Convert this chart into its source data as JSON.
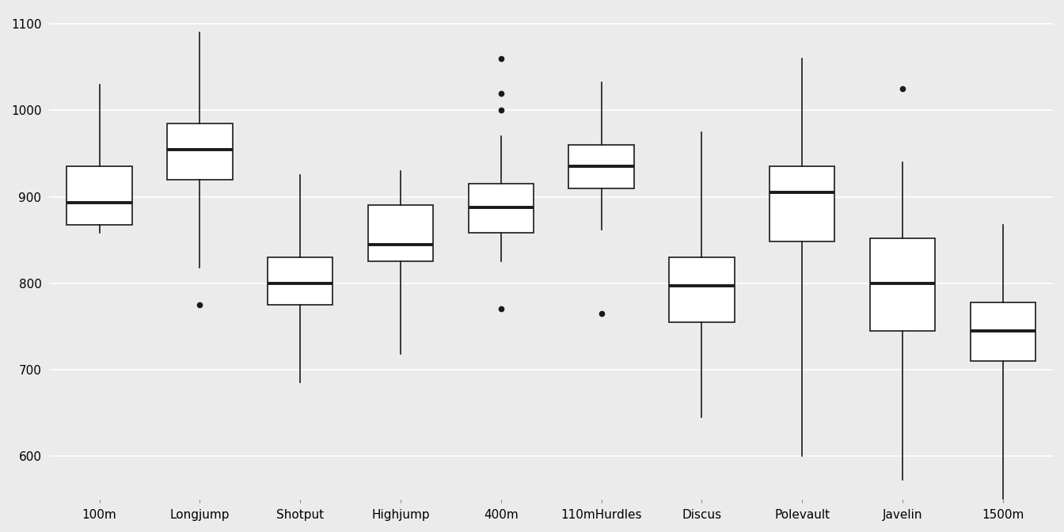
{
  "events": [
    "100m",
    "Longjump",
    "Shotput",
    "Highjump",
    "400m",
    "110mHurdles",
    "Discus",
    "Polevault",
    "Javelin",
    "1500m"
  ],
  "boxplot_stats": {
    "100m": {
      "whislo": 858,
      "q1": 868,
      "med": 893,
      "q3": 935,
      "whishi": 1030,
      "fliers": []
    },
    "Longjump": {
      "whislo": 818,
      "q1": 920,
      "med": 955,
      "q3": 985,
      "whishi": 1090,
      "fliers": [
        775
      ]
    },
    "Shotput": {
      "whislo": 685,
      "q1": 775,
      "med": 800,
      "q3": 830,
      "whishi": 925,
      "fliers": []
    },
    "Highjump": {
      "whislo": 718,
      "q1": 825,
      "med": 845,
      "q3": 890,
      "whishi": 930,
      "fliers": []
    },
    "400m": {
      "whislo": 825,
      "q1": 858,
      "med": 888,
      "q3": 915,
      "whishi": 970,
      "fliers": [
        770,
        1000,
        1020,
        1060
      ]
    },
    "110mHurdles": {
      "whislo": 862,
      "q1": 910,
      "med": 935,
      "q3": 960,
      "whishi": 1032,
      "fliers": [
        765
      ]
    },
    "Discus": {
      "whislo": 645,
      "q1": 755,
      "med": 797,
      "q3": 830,
      "whishi": 975,
      "fliers": []
    },
    "Polevault": {
      "whislo": 600,
      "q1": 848,
      "med": 905,
      "q3": 935,
      "whishi": 1060,
      "fliers": []
    },
    "Javelin": {
      "whislo": 573,
      "q1": 745,
      "med": 800,
      "q3": 852,
      "whishi": 940,
      "fliers": [
        1025
      ]
    },
    "1500m": {
      "whislo": 542,
      "q1": 710,
      "med": 745,
      "q3": 778,
      "whishi": 868,
      "fliers": []
    }
  },
  "ylim": [
    550,
    1115
  ],
  "yticks": [
    600,
    700,
    800,
    900,
    1000,
    1100
  ],
  "background_color": "#ebebeb",
  "box_facecolor": "white",
  "box_edgecolor": "#1a1a1a",
  "median_color": "#1a1a1a",
  "flier_color": "#1a1a1a",
  "grid_color": "white",
  "box_width": 0.65,
  "linewidth": 1.2,
  "median_linewidth": 2.8,
  "tick_fontsize": 11,
  "flier_markersize": 4.5
}
